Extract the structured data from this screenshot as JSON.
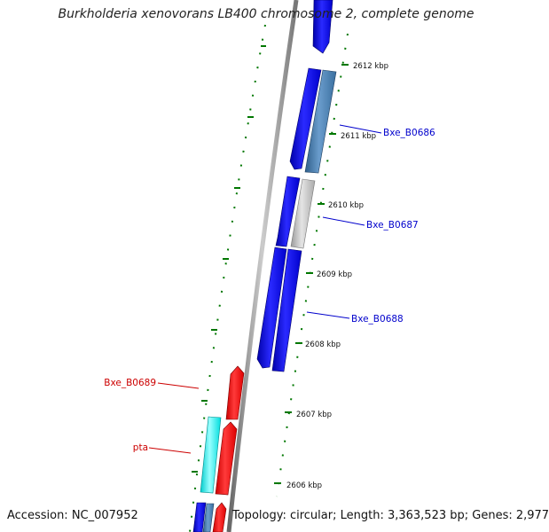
{
  "title": "Burkholderia xenovorans LB400 chromosome 2, complete genome",
  "footer": {
    "accession": "Accession: NC_007952",
    "summary": "Topology: circular; Length: 3,363,523 bp; Genes: 2,977"
  },
  "ruler": {
    "ticks": [
      "2612 kbp",
      "2611 kbp",
      "2610 kbp",
      "2609 kbp",
      "2608 kbp",
      "2607 kbp",
      "2606 kbp"
    ]
  },
  "gene_labels": [
    {
      "text": "Bxe_B0686",
      "color": "#0000cc"
    },
    {
      "text": "Bxe_B0687",
      "color": "#0000cc"
    },
    {
      "text": "Bxe_B0688",
      "color": "#0000cc"
    },
    {
      "text": "Bxe_B0689",
      "color": "#cc0000"
    },
    {
      "text": "pta",
      "color": "#cc0000"
    }
  ],
  "colors": {
    "forward_cds": "#0000ee",
    "reverse_cds": "#ff0000",
    "backbone": "#888888",
    "tick_marks": "#007700",
    "steelblue_feature": "#4682b4",
    "grey_feature": "#c0c0c0",
    "cyan_feature": "#00ffff"
  }
}
